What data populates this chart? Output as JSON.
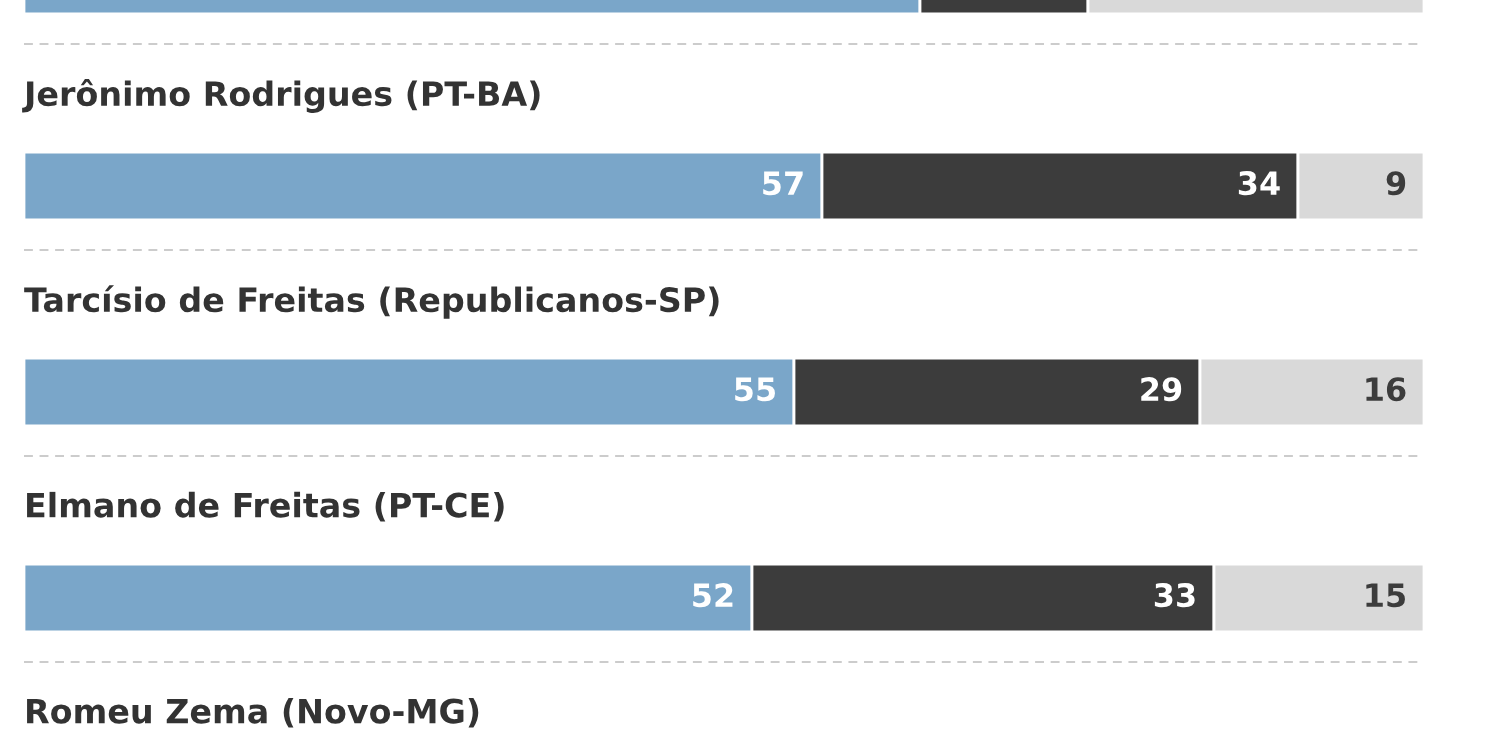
{
  "chart_data": {
    "type": "bar",
    "orientation": "horizontal",
    "stacked": true,
    "legend": false,
    "categories": [
      null,
      "Jerônimo Rodrigues (PT-BA)",
      "Tarcísio de Freitas (Republicanos-SP)",
      "Elmano de Freitas (PT-CE)",
      "Romeu Zema (Novo-MG)"
    ],
    "series": [
      {
        "color": "#7aa6c9",
        "values": [
          64,
          57,
          55,
          52,
          null
        ],
        "value_labels": [
          null,
          "57",
          "55",
          "52",
          null
        ]
      },
      {
        "color": "#3c3c3c",
        "values": [
          12,
          34,
          29,
          33,
          null
        ],
        "value_labels": [
          null,
          "34",
          "29",
          "33",
          null
        ]
      },
      {
        "color": "#d9d9d9",
        "values": [
          24,
          9,
          16,
          15,
          null
        ],
        "value_labels": [
          null,
          "9",
          "16",
          "15",
          null
        ]
      }
    ]
  }
}
